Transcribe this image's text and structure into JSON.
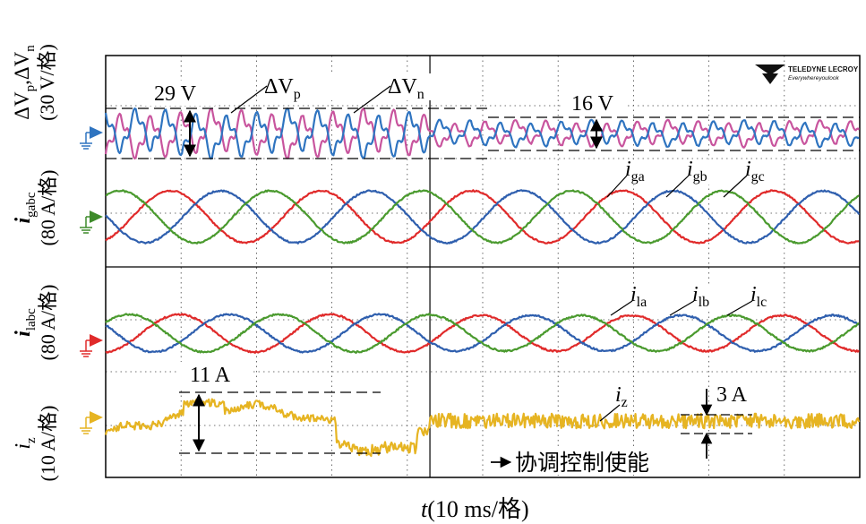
{
  "chart_data": {
    "type": "line",
    "title": "",
    "brand": {
      "name": "TELEDYNE LECROY",
      "tagline": "Everywhereyoulook"
    },
    "xlabel": {
      "var": "t",
      "unit": "(10 ms/格)"
    },
    "time_per_div_ms": 10,
    "total_divs": 10,
    "event": {
      "label": "协调控制使能",
      "time_div": 4.3
    },
    "channels": [
      {
        "id": "ch1",
        "ylabel": {
          "main": "ΔV",
          "sub1": "p",
          "sep": ",ΔV",
          "sub2": "n",
          "scale": "(30 V/格)"
        },
        "marker_color": "#2f74c0",
        "series": [
          {
            "name": "ΔVp",
            "label": "ΔV",
            "sub": "p",
            "color": "#c8559e",
            "phase_deg": 0
          },
          {
            "name": "ΔVn",
            "label": "ΔV",
            "sub": "n",
            "color": "#2f74c0",
            "phase_deg": 180
          }
        ],
        "ripple_before_V": 29,
        "ripple_after_V": 16,
        "annotations": [
          {
            "text": "29 V"
          },
          {
            "text": "16 V"
          }
        ]
      },
      {
        "id": "ch2",
        "ylabel": {
          "main": "i",
          "sub": "gabc",
          "scale": "(80 A/格)"
        },
        "marker_color": "#3d8a2a",
        "series": [
          {
            "name": "iga",
            "label": "i",
            "sub": "ga",
            "color": "#e02a2a",
            "phase_deg": 0
          },
          {
            "name": "igb",
            "label": "i",
            "sub": "gb",
            "color": "#2f5fae",
            "phase_deg": -120
          },
          {
            "name": "igc",
            "label": "i",
            "sub": "gc",
            "color": "#4a9a2e",
            "phase_deg": 120
          }
        ],
        "frequency_hz": 50
      },
      {
        "id": "ch3",
        "ylabel": {
          "main": "i",
          "sub": "labc",
          "scale": "(80 A/格)"
        },
        "marker_color": "#e02a2a",
        "series": [
          {
            "name": "ila",
            "label": "i",
            "sub": "la",
            "color": "#e02a2a",
            "phase_deg": 0
          },
          {
            "name": "ilb",
            "label": "i",
            "sub": "lb",
            "color": "#2f5fae",
            "phase_deg": -120
          },
          {
            "name": "ilc",
            "label": "i",
            "sub": "lc",
            "color": "#4a9a2e",
            "phase_deg": 120
          }
        ],
        "frequency_hz": 50
      },
      {
        "id": "ch4",
        "ylabel": {
          "main": "i",
          "sub": "z",
          "scale": "(10 A/格)"
        },
        "marker_color": "#e6b422",
        "series": [
          {
            "name": "iz",
            "label": "i",
            "sub": "z",
            "color": "#e6b422"
          }
        ],
        "ripple_before_A": 11,
        "ripple_after_A": 3,
        "annotations": [
          {
            "text": "11 A"
          },
          {
            "text": "3 A"
          }
        ]
      }
    ]
  }
}
